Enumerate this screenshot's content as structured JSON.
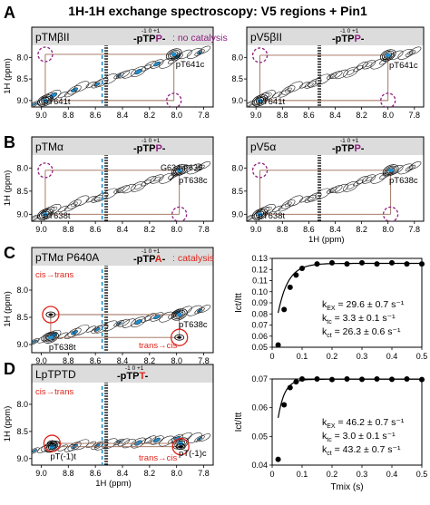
{
  "figure": {
    "title": "1H-1H exchange spectroscopy:  V5 regions + Pin1",
    "colors": {
      "magenta": "#8e1e7f",
      "red": "#e0241b",
      "blue": "#1d8fd1",
      "guide": "#9b6a55",
      "header_bg": "#dcdcdc"
    },
    "panel_letters": [
      "A",
      "B",
      "C",
      "D"
    ],
    "nmr_axis": {
      "ticks": [
        "9.0",
        "8.8",
        "8.6",
        "8.4",
        "8.2",
        "8.0",
        "7.8"
      ],
      "yticks": [
        "8.0",
        "8.5",
        "9.0"
      ],
      "ylabel": "1H (ppm)",
      "xlabel": "1H (ppm)"
    },
    "spectra": [
      {
        "title": "pTMβII",
        "seq_index": "-1 0 +1",
        "seq": "-pTPP-",
        "note": "no catalysis",
        "peaks": [
          "pT641t",
          "pT641c"
        ]
      },
      {
        "title": "pV5βII",
        "seq_index": "-1 0 +1",
        "seq": "-pTPP-",
        "note": "",
        "peaks": [
          "pT641t",
          "pT641c"
        ]
      },
      {
        "title": "pTMα",
        "seq_index": "-1 0 +1",
        "seq": "-pTPP-",
        "note": "",
        "peaks": [
          "pT638t",
          "pT638c",
          "G634-P635"
        ]
      },
      {
        "title": "pV5α",
        "seq_index": "-1 0 +1",
        "seq": "-pTPP-",
        "note": "",
        "peaks": [
          "pT638t",
          "pT638c"
        ]
      },
      {
        "title": "pTMα P640A",
        "seq_index": "-1 0 +1",
        "seq": "-pTPA-",
        "note": "catalysis",
        "peaks": [
          "pT638t",
          "pT638c"
        ],
        "arrows": [
          "cis→trans",
          "trans→cis"
        ]
      },
      {
        "title": "LpTPTD",
        "seq_index": "-1 0 +1",
        "seq": "-pTPT-",
        "note": "",
        "peaks": [
          "pT(-1)t",
          "pT(-1)c"
        ],
        "arrows": [
          "cis→trans",
          "trans→cis"
        ]
      }
    ],
    "kinetics": [
      {
        "ylabel": "Ict/Itt",
        "xlabel": "",
        "xlim": [
          0,
          0.5
        ],
        "ylim": [
          0.05,
          0.13
        ],
        "yticks": [
          "0.05",
          "0.06",
          "0.07",
          "0.08",
          "0.09",
          "0.10",
          "0.11",
          "0.12",
          "0.13"
        ],
        "xticks": [
          "0",
          "0.1",
          "0.2",
          "0.3",
          "0.4",
          "0.5"
        ],
        "k_lines": [
          "29.6 ± 0.7 s⁻¹",
          "3.3 ± 0.1 s⁻¹",
          "26.3 ± 0.6 s⁻¹"
        ]
      },
      {
        "ylabel": "Ict/Itt",
        "xlabel": "Tmix (s)",
        "xlim": [
          0,
          0.5
        ],
        "ylim": [
          0.04,
          0.07
        ],
        "yticks": [
          "0.04",
          "0.05",
          "0.06",
          "0.07"
        ],
        "xticks": [
          "0",
          "0.1",
          "0.2",
          "0.3",
          "0.4",
          "0.5"
        ],
        "k_lines": [
          "46.2 ± 0.7 s⁻¹",
          "3.0 ± 0.1 s⁻¹",
          "43.2 ± 0.7 s⁻¹"
        ]
      }
    ],
    "k_labels": {
      "k": "k",
      "ex": "EX",
      "tc": "tc",
      "ct": "ct"
    },
    "chart_data": [
      {
        "type": "scatter",
        "title": "",
        "xlabel": "",
        "ylabel": "Ict/Itt",
        "xlim": [
          0,
          0.5
        ],
        "ylim": [
          0.05,
          0.13
        ],
        "x": [
          0.02,
          0.04,
          0.06,
          0.08,
          0.1,
          0.15,
          0.2,
          0.25,
          0.3,
          0.35,
          0.4,
          0.45,
          0.5
        ],
        "y": [
          0.052,
          0.084,
          0.104,
          0.115,
          0.121,
          0.125,
          0.126,
          0.125,
          0.126,
          0.125,
          0.126,
          0.125,
          0.125
        ],
        "fit": {
          "plateau": 0.1255,
          "y0": 0.045,
          "rate": 29.6
        }
      },
      {
        "type": "scatter",
        "title": "",
        "xlabel": "Tmix (s)",
        "ylabel": "Ict/Itt",
        "xlim": [
          0,
          0.5
        ],
        "ylim": [
          0.04,
          0.07
        ],
        "x": [
          0.02,
          0.04,
          0.06,
          0.08,
          0.1,
          0.15,
          0.2,
          0.25,
          0.3,
          0.35,
          0.4,
          0.45,
          0.5
        ],
        "y": [
          0.042,
          0.061,
          0.067,
          0.069,
          0.07,
          0.07,
          0.0698,
          0.07,
          0.0699,
          0.07,
          0.0699,
          0.07,
          0.0698
        ],
        "fit": {
          "plateau": 0.0699,
          "y0": 0.036,
          "rate": 46.2
        }
      }
    ]
  }
}
